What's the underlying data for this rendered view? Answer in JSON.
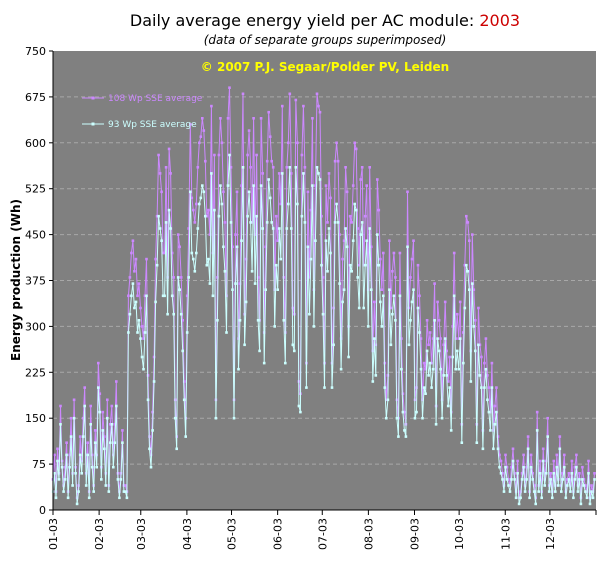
{
  "chart_data": {
    "type": "line",
    "title_prefix": "Daily average energy yield per AC module: ",
    "title_year": "2003",
    "subtitle": "(data of separate groups superimposed)",
    "copyright": "© 2007 P.J. Segaar/Polder PV, Leiden",
    "ylabel": "Energy production (Wh)",
    "xlabel": "",
    "ylim": [
      0,
      750
    ],
    "yticks": [
      "0",
      "75",
      "150",
      "225",
      "300",
      "375",
      "450",
      "525",
      "600",
      "675",
      "750"
    ],
    "months": [
      "01-03",
      "02-03",
      "03-03",
      "04-03",
      "05-03",
      "06-03",
      "07-03",
      "08-03",
      "09-03",
      "10-03",
      "11-03",
      "12-03"
    ],
    "grid": true,
    "legend_position": "top-left",
    "colors": {
      "plot_bg": "#808080",
      "grid": "#a8a8a8",
      "title_year": "#cc0000",
      "copyright": "#ffff00"
    },
    "series": [
      {
        "name": "108 Wp SSE average",
        "color": "#cc88ff",
        "values": [
          50,
          90,
          30,
          100,
          60,
          170,
          80,
          40,
          70,
          110,
          30,
          90,
          150,
          60,
          180,
          70,
          20,
          40,
          120,
          80,
          150,
          200,
          60,
          110,
          30,
          170,
          90,
          40,
          130,
          90,
          240,
          190,
          70,
          160,
          120,
          60,
          180,
          40,
          140,
          170,
          90,
          140,
          210,
          60,
          30,
          60,
          130,
          40,
          40,
          30,
          350,
          380,
          420,
          440,
          390,
          410,
          350,
          370,
          330,
          300,
          280,
          350,
          410,
          220,
          120,
          90,
          160,
          250,
          410,
          480,
          580,
          550,
          520,
          420,
          420,
          560,
          380,
          590,
          550,
          420,
          380,
          180,
          120,
          450,
          430,
          380,
          310,
          210,
          150,
          350,
          460,
          630,
          510,
          490,
          470,
          500,
          560,
          600,
          610,
          640,
          620,
          570,
          480,
          490,
          450,
          660,
          420,
          580,
          180,
          380,
          580,
          640,
          600,
          520,
          470,
          350,
          640,
          690,
          560,
          430,
          180,
          450,
          520,
          280,
          370,
          530,
          680,
          320,
          410,
          580,
          620,
          560,
          470,
          640,
          450,
          580,
          380,
          310,
          640,
          550,
          290,
          430,
          570,
          650,
          610,
          570,
          560,
          360,
          480,
          440,
          550,
          500,
          660,
          380,
          290,
          560,
          600,
          680,
          550,
          330,
          320,
          670,
          600,
          210,
          190,
          580,
          660,
          560,
          240,
          520,
          380,
          490,
          640,
          360,
          530,
          680,
          660,
          650,
          480,
          380,
          240,
          530,
          470,
          550,
          510,
          240,
          330,
          570,
          600,
          570,
          450,
          280,
          410,
          440,
          560,
          520,
          300,
          480,
          470,
          530,
          600,
          590,
          460,
          400,
          540,
          560,
          400,
          480,
          530,
          360,
          560,
          430,
          260,
          340,
          270,
          540,
          490,
          410,
          360,
          420,
          240,
          180,
          220,
          440,
          330,
          390,
          420,
          380,
          180,
          150,
          420,
          280,
          190,
          160,
          140,
          520,
          330,
          380,
          410,
          440,
          180,
          200,
          400,
          350,
          280,
          180,
          240,
          230,
          310,
          270,
          290,
          240,
          280,
          370,
          170,
          340,
          310,
          280,
          180,
          270,
          340,
          260,
          210,
          250,
          160,
          300,
          420,
          280,
          320,
          280,
          340,
          140,
          290,
          400,
          480,
          470,
          440,
          260,
          450,
          360,
          310,
          140,
          330,
          270,
          250,
          130,
          240,
          280,
          220,
          200,
          160,
          240,
          130,
          170,
          200,
          120,
          90,
          80,
          60,
          40,
          90,
          70,
          50,
          40,
          70,
          100,
          60,
          30,
          80,
          20,
          30,
          60,
          90,
          40,
          70,
          120,
          30,
          90,
          60,
          40,
          20,
          160,
          40,
          80,
          30,
          100,
          50,
          80,
          150,
          40,
          60,
          30,
          80,
          40,
          90,
          50,
          120,
          40,
          60,
          90,
          30,
          50,
          60,
          40,
          80,
          30,
          70,
          90,
          40,
          60,
          20,
          70,
          50,
          40,
          30,
          80,
          20,
          40,
          30,
          60
        ]
      },
      {
        "name": "93 Wp SSE average",
        "color": "#ccffff",
        "values": [
          30,
          60,
          20,
          80,
          50,
          140,
          70,
          30,
          50,
          90,
          20,
          70,
          120,
          40,
          150,
          60,
          10,
          30,
          90,
          60,
          120,
          170,
          40,
          90,
          20,
          140,
          70,
          30,
          110,
          70,
          200,
          160,
          50,
          130,
          100,
          40,
          150,
          30,
          110,
          140,
          70,
          110,
          170,
          50,
          20,
          50,
          110,
          30,
          30,
          20,
          290,
          320,
          350,
          370,
          330,
          340,
          290,
          310,
          280,
          250,
          230,
          290,
          350,
          180,
          100,
          70,
          130,
          210,
          340,
          400,
          480,
          460,
          440,
          350,
          350,
          470,
          320,
          490,
          460,
          350,
          320,
          150,
          100,
          380,
          360,
          320,
          260,
          180,
          120,
          290,
          380,
          520,
          420,
          410,
          390,
          420,
          460,
          500,
          510,
          530,
          520,
          480,
          400,
          410,
          370,
          550,
          350,
          490,
          150,
          310,
          480,
          530,
          500,
          430,
          390,
          290,
          530,
          580,
          470,
          360,
          150,
          370,
          430,
          230,
          310,
          440,
          560,
          270,
          340,
          480,
          520,
          470,
          390,
          530,
          370,
          480,
          310,
          260,
          530,
          460,
          240,
          360,
          470,
          540,
          510,
          470,
          460,
          300,
          400,
          360,
          460,
          410,
          550,
          310,
          240,
          460,
          500,
          560,
          460,
          270,
          260,
          560,
          500,
          170,
          160,
          480,
          550,
          470,
          200,
          430,
          320,
          410,
          530,
          300,
          440,
          560,
          550,
          540,
          400,
          320,
          200,
          440,
          390,
          460,
          420,
          200,
          270,
          470,
          500,
          470,
          370,
          230,
          340,
          360,
          460,
          430,
          250,
          400,
          390,
          440,
          500,
          490,
          380,
          330,
          450,
          470,
          330,
          400,
          440,
          300,
          460,
          360,
          210,
          280,
          220,
          450,
          400,
          340,
          300,
          350,
          200,
          150,
          180,
          360,
          270,
          320,
          350,
          310,
          150,
          120,
          350,
          230,
          160,
          130,
          120,
          430,
          270,
          310,
          340,
          360,
          150,
          160,
          330,
          290,
          230,
          150,
          200,
          190,
          260,
          220,
          240,
          200,
          230,
          310,
          140,
          280,
          260,
          230,
          150,
          220,
          280,
          220,
          170,
          200,
          130,
          250,
          350,
          230,
          260,
          230,
          280,
          110,
          240,
          330,
          400,
          390,
          360,
          210,
          370,
          300,
          260,
          110,
          270,
          220,
          200,
          100,
          200,
          230,
          180,
          160,
          130,
          200,
          100,
          140,
          160,
          100,
          70,
          60,
          50,
          30,
          70,
          50,
          40,
          30,
          50,
          80,
          50,
          20,
          60,
          10,
          20,
          50,
          70,
          30,
          50,
          100,
          20,
          70,
          50,
          30,
          10,
          130,
          30,
          60,
          20,
          80,
          40,
          60,
          120,
          30,
          50,
          20,
          60,
          30,
          70,
          40,
          100,
          30,
          50,
          70,
          20,
          40,
          50,
          30,
          60,
          20,
          50,
          70,
          30,
          50,
          10,
          50,
          40,
          30,
          20,
          60,
          10,
          30,
          20,
          50
        ]
      }
    ]
  }
}
